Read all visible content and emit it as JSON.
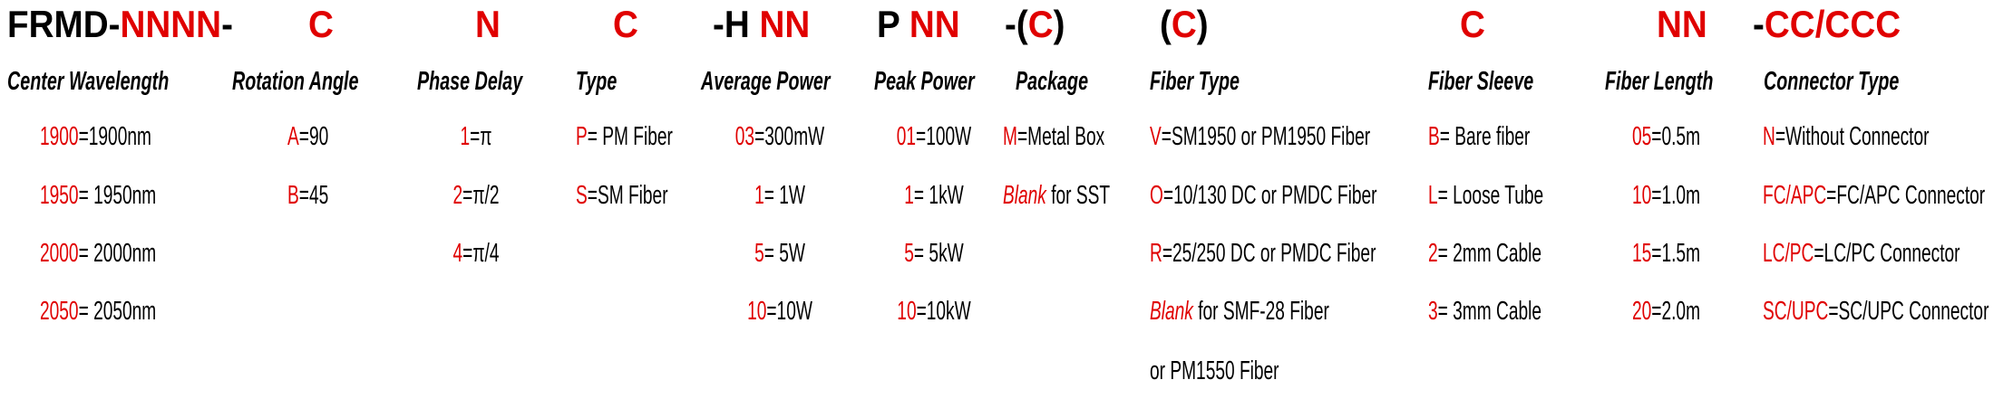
{
  "part_number": [
    {
      "text": "FRMD-",
      "color": "#000000"
    },
    {
      "text": "NNNN",
      "color": "#e00000"
    },
    {
      "text": "-",
      "color": "#000000"
    },
    {
      "text": "C",
      "color": "#e00000"
    },
    {
      "text": "N",
      "color": "#e00000"
    },
    {
      "text": "C",
      "color": "#e00000"
    },
    {
      "text": "-H ",
      "color": "#000000"
    },
    {
      "text": "NN",
      "color": "#e00000"
    },
    {
      "text": "P ",
      "color": "#000000"
    },
    {
      "text": "NN",
      "color": "#e00000"
    },
    {
      "text": "-(",
      "color": "#000000"
    },
    {
      "text": "C",
      "color": "#e00000"
    },
    {
      "text": ")",
      "color": "#000000"
    },
    {
      "text": "(",
      "color": "#000000"
    },
    {
      "text": "C",
      "color": "#e00000"
    },
    {
      "text": ")",
      "color": "#000000"
    },
    {
      "text": "C",
      "color": "#e00000"
    },
    {
      "text": "NN",
      "color": "#e00000"
    },
    {
      "text": "-",
      "color": "#000000"
    },
    {
      "text": "CC/CCC",
      "color": "#e00000"
    }
  ],
  "columns": [
    {
      "title": "Center Wavelength",
      "items": [
        {
          "code": "1900",
          "text": "=1900nm"
        },
        {
          "code": "1950",
          "text": "= 1950nm"
        },
        {
          "code": "2000",
          "text": "= 2000nm"
        },
        {
          "code": "2050",
          "text": "= 2050nm"
        }
      ]
    },
    {
      "title": "Rotation Angle",
      "items": [
        {
          "code": "A",
          "text": "=90"
        },
        {
          "code": "B",
          "text": "=45"
        }
      ]
    },
    {
      "title": "Phase Delay",
      "items": [
        {
          "code": "1",
          "text": "=π"
        },
        {
          "code": "2",
          "text": "=π/2"
        },
        {
          "code": "4",
          "text": "=π/4"
        }
      ]
    },
    {
      "title": "Type",
      "items": [
        {
          "code": "P",
          "text": "= PM Fiber"
        },
        {
          "code": "S",
          "text": "=SM Fiber"
        }
      ]
    },
    {
      "title": "Average Power",
      "items": [
        {
          "code": "03",
          "text": "=300mW"
        },
        {
          "code": "1",
          "text": "= 1W"
        },
        {
          "code": "5",
          "text": "= 5W"
        },
        {
          "code": "10",
          "text": "=10W"
        }
      ]
    },
    {
      "title": "Peak Power",
      "items": [
        {
          "code": "01",
          "text": "=100W"
        },
        {
          "code": "1",
          "text": "= 1kW"
        },
        {
          "code": "5",
          "text": "= 5kW"
        },
        {
          "code": "10",
          "text": "=10kW"
        }
      ]
    },
    {
      "title": "Package",
      "items": [
        {
          "code": "M",
          "text": "=Metal Box"
        },
        {
          "code": "Blank",
          "italic": true,
          "text": " for SST"
        }
      ]
    },
    {
      "title": "Fiber Type",
      "items": [
        {
          "code": "V",
          "text": "=SM1950 or PM1950 Fiber"
        },
        {
          "code": "O",
          "text": "=10/130 DC or PMDC Fiber"
        },
        {
          "code": "R",
          "text": "=25/250 DC or PMDC Fiber"
        },
        {
          "code": "Blank",
          "italic": true,
          "text": " for SMF-28 Fiber"
        },
        {
          "code": "",
          "text": "or PM1550 Fiber"
        }
      ]
    },
    {
      "title": "Fiber Sleeve",
      "items": [
        {
          "code": "B",
          "text": "= Bare fiber"
        },
        {
          "code": "L",
          "text": "= Loose Tube"
        },
        {
          "code": "2",
          "text": "= 2mm Cable"
        },
        {
          "code": "3",
          "text": "= 3mm Cable"
        }
      ]
    },
    {
      "title": "Fiber Length",
      "items": [
        {
          "code": "05",
          "text": "=0.5m"
        },
        {
          "code": "10",
          "text": "=1.0m"
        },
        {
          "code": "15",
          "text": "=1.5m"
        },
        {
          "code": "20",
          "text": "=2.0m"
        }
      ]
    },
    {
      "title": "Connector Type",
      "items": [
        {
          "code": "N",
          "text": "=Without Connector"
        },
        {
          "code": "FC/APC",
          "text": "=FC/APC Connector"
        },
        {
          "code": "LC/PC",
          "text": "=LC/PC Connector"
        },
        {
          "code": "SC/UPC",
          "text": "=SC/UPC Connector"
        }
      ]
    }
  ]
}
